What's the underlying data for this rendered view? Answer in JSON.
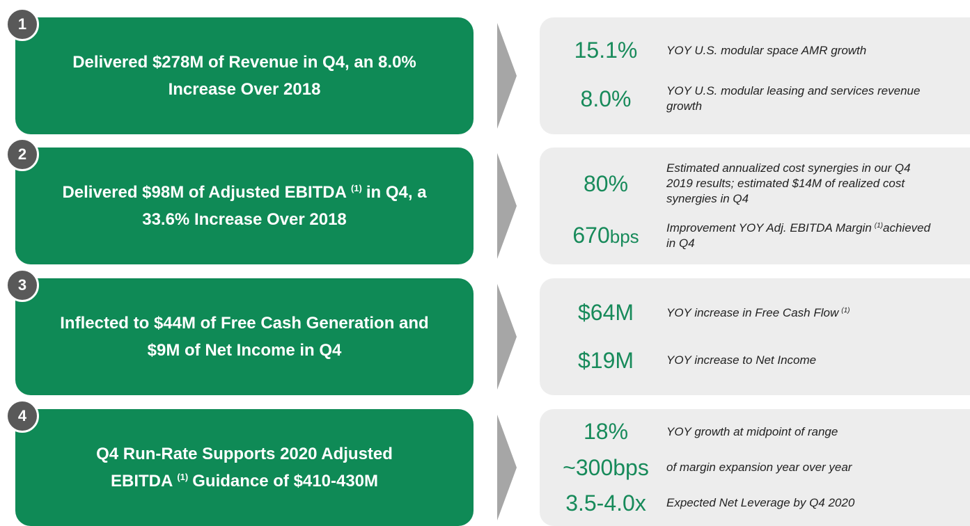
{
  "rows": [
    {
      "number": "1",
      "headline": [
        {
          "text": "Delivered $278M of Revenue in Q4, an 8.0%"
        },
        {
          "text": "Increase Over 2018"
        }
      ],
      "metrics": [
        {
          "value": "15.1%",
          "text": "YOY U.S. modular space AMR growth"
        },
        {
          "value": "8.0%",
          "text": "YOY U.S. modular leasing and services revenue growth"
        }
      ]
    },
    {
      "number": "2",
      "headline": [
        {
          "text": "Delivered $98M of Adjusted EBITDA",
          "note": "(1)",
          "text_after": "in Q4, a"
        },
        {
          "text": "33.6% Increase Over 2018"
        }
      ],
      "metrics": [
        {
          "value": "80%",
          "text": "Estimated annualized cost synergies in our Q4 2019 results; estimated $14M of realized cost synergies in Q4"
        },
        {
          "value": "670",
          "unit": "bps",
          "text": "Improvement YOY Adj. EBITDA Margin",
          "note": "(1)",
          "text_after": "achieved in Q4"
        }
      ]
    },
    {
      "number": "3",
      "headline": [
        {
          "text": "Inflected to $44M of Free Cash Generation and"
        },
        {
          "text": "$9M of Net Income in Q4"
        }
      ],
      "metrics": [
        {
          "value": "$64M",
          "text": "YOY increase in Free Cash Flow",
          "note": "(1)"
        },
        {
          "value": "$19M",
          "text": "YOY increase to Net Income"
        }
      ]
    },
    {
      "number": "4",
      "headline": [
        {
          "text": "Q4 Run-Rate Supports 2020 Adjusted"
        },
        {
          "text": "EBITDA",
          "note": "(1)",
          "text_after": "Guidance of $410-430M"
        }
      ],
      "metrics": [
        {
          "value": "18%",
          "text": "YOY growth at midpoint of range"
        },
        {
          "value": "~300bps",
          "text": "of margin expansion year over year"
        },
        {
          "value": "3.5-4.0x",
          "text": "Expected Net Leverage by Q4 2020"
        }
      ]
    }
  ]
}
